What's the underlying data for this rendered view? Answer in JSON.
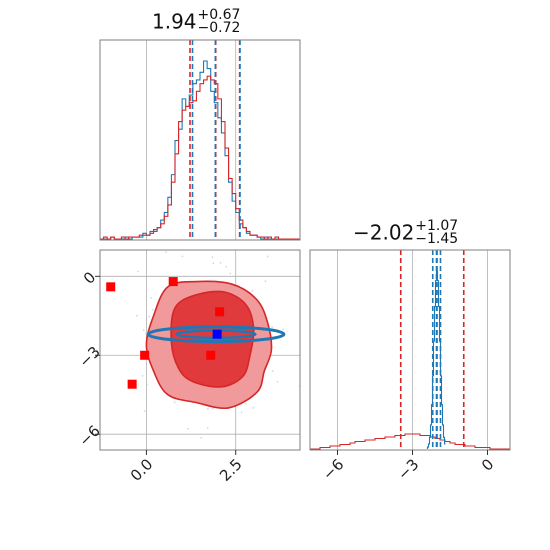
{
  "chart_data": {
    "type": "corner",
    "parameters": [
      "p0",
      "p1"
    ],
    "colors": {
      "red": "#d62728",
      "blue": "#1f77b4",
      "grid": "#b0b0b0",
      "marker_blue": "#0000ff",
      "marker_red": "#ff0000"
    },
    "titles": [
      {
        "value": "1.94",
        "plus": "+0.67",
        "minus": "−0.72"
      },
      {
        "value": "−2.02",
        "plus": "+1.07",
        "minus": "−1.45"
      }
    ],
    "axes": {
      "x0": {
        "lim": [
          -1.3,
          4.3
        ],
        "ticks": [
          0.0,
          2.5
        ],
        "tick_labels": [
          "0.0",
          "2.5"
        ]
      },
      "y1": {
        "lim": [
          -6.6,
          1.0
        ],
        "ticks": [
          0,
          -3,
          -6
        ],
        "tick_labels": [
          "0",
          "−3",
          "−6"
        ]
      },
      "x1": {
        "lim": [
          -7.1,
          0.9
        ],
        "ticks": [
          -6,
          -3,
          0
        ],
        "tick_labels": [
          "−6",
          "−3",
          "0"
        ]
      }
    },
    "grid": true,
    "quantile_lines": {
      "p0": {
        "red": [
          1.22,
          1.94,
          2.61
        ],
        "blue": [
          1.29,
          1.93,
          2.62
        ]
      },
      "p1": {
        "red": [
          -3.47,
          -2.02,
          -0.95
        ],
        "blue": [
          -2.19,
          -2.04,
          -1.88
        ]
      }
    },
    "hist_p0": {
      "bins_start": -1.3,
      "bin_width": 0.1,
      "red": [
        0,
        1,
        0,
        1,
        0,
        0,
        1,
        0,
        1,
        1,
        1,
        2,
        2,
        2,
        3,
        5,
        6,
        8,
        12,
        18,
        30,
        45,
        62,
        68,
        70,
        72,
        73,
        78,
        82,
        84,
        86,
        84,
        82,
        74,
        62,
        48,
        32,
        24,
        16,
        10,
        6,
        4,
        2,
        2,
        1,
        1,
        0,
        1,
        0,
        1,
        0,
        0,
        0,
        0,
        0,
        0
      ],
      "blue": [
        0,
        0,
        0,
        1,
        0,
        0,
        0,
        1,
        0,
        1,
        1,
        1,
        3,
        2,
        4,
        4,
        6,
        10,
        14,
        22,
        34,
        52,
        58,
        74,
        70,
        76,
        82,
        84,
        88,
        94,
        90,
        78,
        72,
        64,
        56,
        44,
        30,
        20,
        14,
        8,
        6,
        3,
        2,
        2,
        1,
        0,
        1,
        0,
        0,
        0,
        0,
        0,
        0,
        0,
        0,
        0
      ]
    },
    "hist_p1": {
      "bins_start": -7.1,
      "bin_width": 0.2,
      "red": [
        0,
        0,
        1,
        1,
        2,
        2,
        3,
        3,
        4,
        5,
        5,
        6,
        6,
        7,
        7,
        8,
        8,
        9,
        9,
        10,
        10,
        10,
        9,
        9,
        8,
        7,
        6,
        5,
        4,
        3,
        3,
        2,
        2,
        1,
        1,
        1,
        0,
        0,
        0,
        0
      ],
      "blue_peak_center": -2.04,
      "blue_peak_width": 0.12
    },
    "contours": [
      {
        "level": "outer",
        "fill": "#f09a9c",
        "points": [
          [
            0.2,
            -1.5
          ],
          [
            0.6,
            -0.4
          ],
          [
            1.4,
            -0.2
          ],
          [
            2.4,
            -0.3
          ],
          [
            3.1,
            -0.9
          ],
          [
            3.4,
            -1.8
          ],
          [
            3.5,
            -2.8
          ],
          [
            3.3,
            -3.6
          ],
          [
            3.1,
            -4.4
          ],
          [
            2.3,
            -5.0
          ],
          [
            1.4,
            -4.8
          ],
          [
            0.6,
            -4.5
          ],
          [
            0.2,
            -3.6
          ],
          [
            0.0,
            -2.6
          ]
        ]
      },
      {
        "level": "inner",
        "fill": "#e03a3d",
        "points": [
          [
            0.8,
            -1.2
          ],
          [
            1.4,
            -0.7
          ],
          [
            2.2,
            -0.6
          ],
          [
            2.8,
            -1.1
          ],
          [
            3.0,
            -2.0
          ],
          [
            2.9,
            -3.0
          ],
          [
            2.7,
            -3.8
          ],
          [
            2.1,
            -4.2
          ],
          [
            1.3,
            -4.0
          ],
          [
            0.9,
            -3.5
          ],
          [
            0.7,
            -2.5
          ]
        ]
      }
    ],
    "blue_ellipse": {
      "cx": 1.95,
      "cy": -2.2,
      "rx": 1.9,
      "ry": 0.28,
      "rx_inner": 1.1,
      "ry_inner": 0.14
    },
    "scatter_points": [
      {
        "x": -1.0,
        "y": -0.4,
        "color": "red"
      },
      {
        "x": 0.75,
        "y": -0.2,
        "color": "red"
      },
      {
        "x": 2.05,
        "y": -1.35,
        "color": "red"
      },
      {
        "x": -0.05,
        "y": -3.0,
        "color": "red"
      },
      {
        "x": 1.8,
        "y": -3.0,
        "color": "red"
      },
      {
        "x": -0.4,
        "y": -4.1,
        "color": "red"
      },
      {
        "x": 1.98,
        "y": -2.2,
        "color": "blue"
      }
    ]
  }
}
